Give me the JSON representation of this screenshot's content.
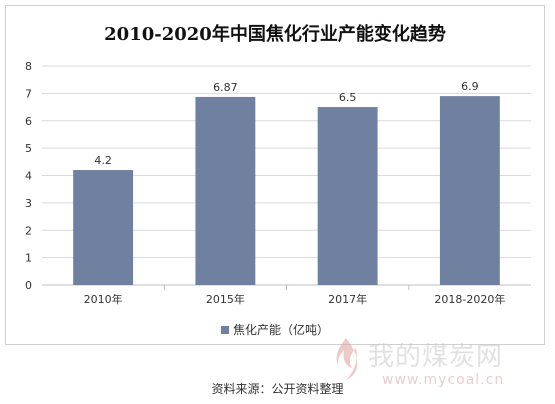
{
  "chart_data": {
    "type": "bar",
    "title": "2010-2020年中国焦化行业产能变化趋势",
    "categories": [
      "2010年",
      "2015年",
      "2017年",
      "2018-2020年"
    ],
    "series": [
      {
        "name": "焦化产能（亿吨）",
        "values": [
          4.2,
          6.87,
          6.5,
          6.9
        ],
        "labels": [
          "4.2",
          "6.87",
          "6.5",
          "6.9"
        ]
      }
    ],
    "xlabel": "",
    "ylabel": "",
    "ylim": [
      0,
      8
    ],
    "yticks": [
      0,
      1,
      2,
      3,
      4,
      5,
      6,
      7,
      8
    ],
    "grid": true,
    "legend": "bottom",
    "bar_color": "#7080a0"
  },
  "source": "资料来源：公开资料整理",
  "watermark": {
    "text": "我的煤炭网",
    "url": "www.mycoal.cn",
    "logo_color": "#e0a0a0"
  }
}
